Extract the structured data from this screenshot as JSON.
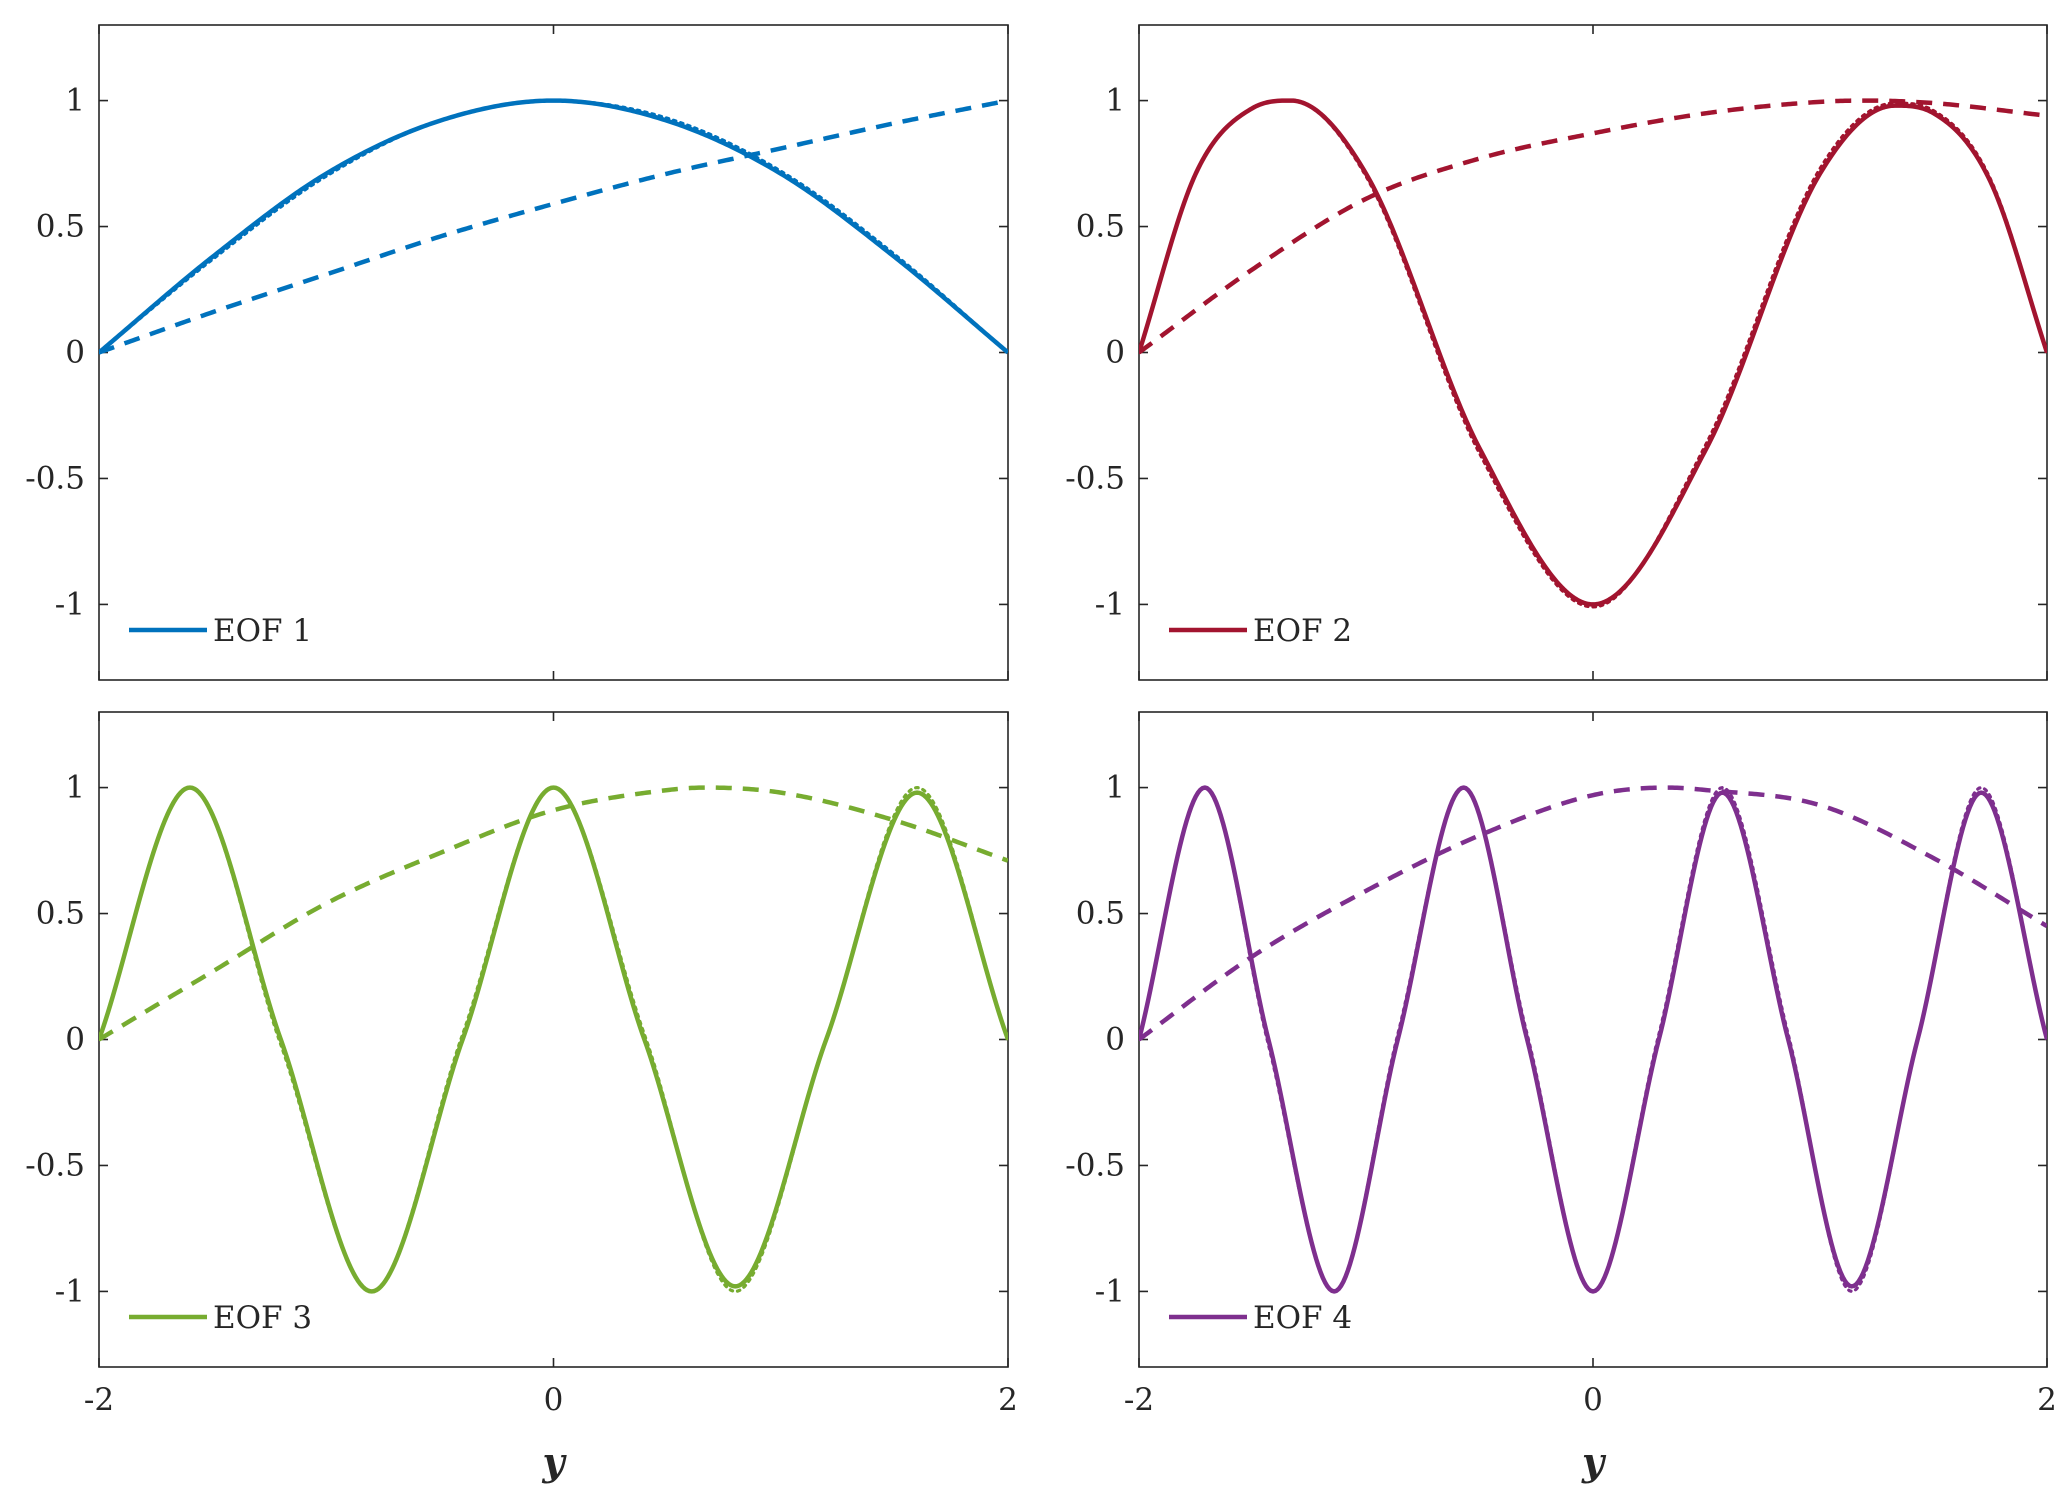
{
  "chart_data": [
    {
      "type": "line",
      "title": "",
      "xlabel": "",
      "ylabel": "",
      "xlim": [
        -2,
        2
      ],
      "ylim": [
        -1.3,
        1.3
      ],
      "xticks": [
        "-2",
        "0",
        "2"
      ],
      "yticks": [
        "-1",
        "-0.5",
        "0",
        "0.5",
        "1"
      ],
      "grid": false,
      "legend_position": "bottom-left",
      "color": "#0072BD",
      "series": [
        {
          "name": "EOF 1",
          "style": "solid",
          "x": [
            -2,
            -1.5,
            -1,
            -0.5,
            0,
            0.5,
            1,
            1.5,
            2
          ],
          "y": [
            0,
            0.38,
            0.71,
            0.92,
            1,
            0.92,
            0.71,
            0.38,
            0
          ]
        },
        {
          "style": "dotted",
          "x": [
            -2,
            -1.5,
            -1,
            -0.5,
            0,
            0.5,
            1,
            1.5,
            2
          ],
          "y": [
            0,
            0.37,
            0.7,
            0.92,
            1,
            0.93,
            0.72,
            0.39,
            0
          ]
        },
        {
          "style": "dashed",
          "x": [
            -2,
            -1.5,
            -1,
            -0.5,
            0,
            0.5,
            1,
            1.5,
            2
          ],
          "y": [
            0,
            0.16,
            0.31,
            0.46,
            0.59,
            0.71,
            0.81,
            0.91,
            1
          ]
        }
      ]
    },
    {
      "type": "line",
      "title": "",
      "xlabel": "",
      "ylabel": "",
      "xlim": [
        -2,
        2
      ],
      "ylim": [
        -1.3,
        1.3
      ],
      "xticks": [
        "-2",
        "0",
        "2"
      ],
      "yticks": [
        "-1",
        "-0.5",
        "0",
        "0.5",
        "1"
      ],
      "grid": false,
      "legend_position": "bottom-left",
      "color": "#A2142F",
      "series": [
        {
          "name": "EOF 2",
          "style": "solid",
          "x": [
            -2,
            -1.75,
            -1.5,
            -1.33,
            -1,
            -0.5,
            0,
            0.5,
            1,
            1.33,
            1.5,
            1.75,
            2
          ],
          "y": [
            0,
            0.71,
            0.97,
            1,
            0.71,
            -0.38,
            -1,
            -0.38,
            0.71,
            0.98,
            0.95,
            0.68,
            0
          ]
        },
        {
          "style": "dotted",
          "x": [
            -2,
            -1.75,
            -1.5,
            -1.33,
            -1,
            -0.5,
            0,
            0.5,
            1,
            1.33,
            1.5,
            1.75,
            2
          ],
          "y": [
            0,
            0.71,
            0.97,
            1,
            0.7,
            -0.4,
            -1.01,
            -0.36,
            0.73,
            0.99,
            0.96,
            0.69,
            0
          ]
        },
        {
          "style": "dashed",
          "x": [
            -2,
            -1.5,
            -1,
            -0.5,
            0,
            0.5,
            1,
            1.2,
            1.5,
            2
          ],
          "y": [
            0,
            0.33,
            0.61,
            0.77,
            0.87,
            0.95,
            0.995,
            1,
            0.99,
            0.94
          ]
        }
      ]
    },
    {
      "type": "line",
      "title": "",
      "xlabel": "y",
      "ylabel": "",
      "xlim": [
        -2,
        2
      ],
      "ylim": [
        -1.3,
        1.3
      ],
      "xticks": [
        "-2",
        "0",
        "2"
      ],
      "yticks": [
        "-1",
        "-0.5",
        "0",
        "0.5",
        "1"
      ],
      "grid": false,
      "legend_position": "bottom-left",
      "color": "#77AC30",
      "series": [
        {
          "name": "EOF 3",
          "style": "solid",
          "x": [
            -2,
            -1.6,
            -1.2,
            -0.8,
            -0.4,
            0,
            0.4,
            0.8,
            1.2,
            1.6,
            2
          ],
          "y": [
            0,
            1,
            0,
            -1,
            0,
            1,
            0,
            -0.98,
            0,
            0.98,
            0
          ]
        },
        {
          "style": "dotted",
          "x": [
            -2,
            -1.6,
            -1.2,
            -0.8,
            -0.4,
            0,
            0.4,
            0.8,
            1.2,
            1.6,
            2
          ],
          "y": [
            0,
            1,
            -0.02,
            -1,
            0.02,
            1,
            0.02,
            -1,
            0,
            1,
            0
          ]
        },
        {
          "style": "dashed",
          "x": [
            -2,
            -1.5,
            -1,
            -0.5,
            0,
            0.5,
            0.67,
            1,
            1.5,
            2
          ],
          "y": [
            0,
            0.27,
            0.54,
            0.74,
            0.91,
            0.99,
            1,
            0.98,
            0.87,
            0.71
          ]
        }
      ]
    },
    {
      "type": "line",
      "title": "",
      "xlabel": "y",
      "ylabel": "",
      "xlim": [
        -2,
        2
      ],
      "ylim": [
        -1.3,
        1.3
      ],
      "xticks": [
        "-2",
        "0",
        "2"
      ],
      "yticks": [
        "-1",
        "-0.5",
        "0",
        "0.5",
        "1"
      ],
      "grid": false,
      "legend_position": "bottom-left",
      "color": "#7E2F8E",
      "series": [
        {
          "name": "EOF 4",
          "style": "solid",
          "x": [
            -2,
            -1.71,
            -1.43,
            -1.14,
            -0.86,
            -0.57,
            -0.29,
            0,
            0.29,
            0.57,
            0.86,
            1.14,
            1.43,
            1.71,
            2
          ],
          "y": [
            0,
            1,
            0,
            -1,
            0,
            1,
            0,
            -1,
            0,
            0.98,
            0,
            -0.98,
            0,
            0.98,
            0
          ]
        },
        {
          "style": "dotted",
          "x": [
            -2,
            -1.71,
            -1.43,
            -1.14,
            -0.86,
            -0.57,
            -0.29,
            0,
            0.29,
            0.57,
            0.86,
            1.14,
            1.43,
            1.71,
            2
          ],
          "y": [
            0,
            1,
            -0.02,
            -1,
            0.02,
            1,
            0.02,
            -1,
            0.02,
            1,
            0.02,
            -1,
            0,
            1,
            0
          ]
        },
        {
          "style": "dashed",
          "x": [
            -2,
            -1.5,
            -1,
            -0.5,
            0,
            0.33,
            0.5,
            1,
            1.5,
            2
          ],
          "y": [
            0,
            0.33,
            0.59,
            0.81,
            0.97,
            1,
            0.99,
            0.93,
            0.72,
            0.45
          ]
        }
      ]
    }
  ]
}
